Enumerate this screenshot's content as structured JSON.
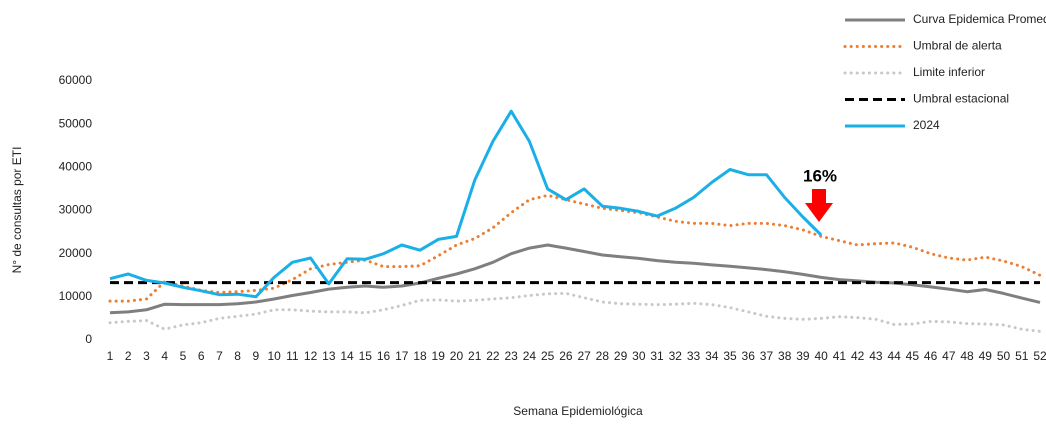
{
  "chart_data": {
    "type": "line",
    "xlabel": "Semana Epidemiológica",
    "ylabel": "N° de consultas por ETI",
    "annotation": "16%",
    "categories": [
      "1",
      "2",
      "3",
      "4",
      "5",
      "6",
      "7",
      "8",
      "9",
      "10",
      "11",
      "12",
      "13",
      "14",
      "15",
      "16",
      "17",
      "18",
      "19",
      "20",
      "21",
      "22",
      "23",
      "24",
      "25",
      "26",
      "27",
      "28",
      "29",
      "30",
      "31",
      "32",
      "33",
      "34",
      "35",
      "36",
      "37",
      "38",
      "39",
      "40",
      "41",
      "42",
      "43",
      "44",
      "45",
      "46",
      "47",
      "48",
      "49",
      "50",
      "51",
      "52"
    ],
    "ylim": [
      0,
      60000
    ],
    "yticks": [
      0,
      10000,
      20000,
      30000,
      40000,
      50000,
      60000
    ],
    "grid": false,
    "legend": "top-right",
    "series": [
      {
        "name": "Curva Epidemica Promedio",
        "color": "#7f7f7f",
        "style": "solid",
        "values": [
          6300,
          6500,
          7000,
          8300,
          8200,
          8200,
          8200,
          8400,
          8800,
          9500,
          10300,
          11000,
          11800,
          12200,
          12500,
          12200,
          12500,
          13200,
          14300,
          15300,
          16500,
          18000,
          20000,
          21300,
          22000,
          21300,
          20500,
          19700,
          19300,
          18900,
          18400,
          18000,
          17800,
          17400,
          17100,
          16700,
          16300,
          15800,
          15200,
          14500,
          14000,
          13700,
          13400,
          13200,
          12800,
          12300,
          11800,
          11200,
          11700,
          10800,
          9700,
          8700
        ]
      },
      {
        "name": "Umbral de alerta",
        "color": "#ed7d31",
        "style": "dotted",
        "values": [
          9000,
          9000,
          9500,
          13500,
          12500,
          11500,
          11000,
          11200,
          11500,
          12000,
          14000,
          16500,
          17500,
          18000,
          18500,
          17000,
          17000,
          17200,
          19500,
          22000,
          23500,
          26000,
          29500,
          32500,
          33500,
          32500,
          31500,
          30500,
          30000,
          29500,
          28500,
          27500,
          27000,
          27000,
          26500,
          27000,
          27000,
          26500,
          25500,
          24000,
          23000,
          22000,
          22300,
          22500,
          21500,
          20000,
          19000,
          18500,
          19200,
          18300,
          17000,
          15000
        ]
      },
      {
        "name": "Limite inferior",
        "color": "#c8c8c8",
        "style": "dotted",
        "values": [
          4000,
          4300,
          4500,
          2500,
          3500,
          4000,
          5000,
          5500,
          6000,
          7000,
          7000,
          6700,
          6500,
          6500,
          6300,
          7000,
          8000,
          9200,
          9300,
          9000,
          9200,
          9500,
          9800,
          10300,
          10700,
          10800,
          9800,
          8800,
          8400,
          8300,
          8200,
          8300,
          8500,
          8200,
          7500,
          6500,
          5500,
          5000,
          4800,
          5000,
          5400,
          5200,
          4800,
          3600,
          3700,
          4300,
          4200,
          3800,
          3700,
          3500,
          2500,
          2000
        ]
      },
      {
        "name": "Umbral estacional",
        "color": "#000000",
        "style": "dashed",
        "values": [
          13300,
          13300,
          13300,
          13300,
          13300,
          13300,
          13300,
          13300,
          13300,
          13300,
          13300,
          13300,
          13300,
          13300,
          13300,
          13300,
          13300,
          13300,
          13300,
          13300,
          13300,
          13300,
          13300,
          13300,
          13300,
          13300,
          13300,
          13300,
          13300,
          13300,
          13300,
          13300,
          13300,
          13300,
          13300,
          13300,
          13300,
          13300,
          13300,
          13300,
          13300,
          13300,
          13300,
          13300,
          13300,
          13300,
          13300,
          13300,
          13300,
          13300,
          13300,
          13300
        ]
      },
      {
        "name": "2024",
        "color": "#1aafe6",
        "style": "solid",
        "values": [
          14200,
          15300,
          13800,
          13200,
          12200,
          11400,
          10500,
          10600,
          10000,
          14500,
          18000,
          19000,
          13000,
          18800,
          18700,
          20000,
          22000,
          20800,
          23300,
          24000,
          37000,
          46000,
          53000,
          46000,
          35000,
          32500,
          35000,
          31000,
          30500,
          29800,
          28700,
          30500,
          33000,
          36500,
          39500,
          38300,
          38300,
          33000,
          28500,
          24300,
          null,
          null,
          null,
          null,
          null,
          null,
          null,
          null,
          null,
          null,
          null,
          null
        ]
      }
    ]
  }
}
